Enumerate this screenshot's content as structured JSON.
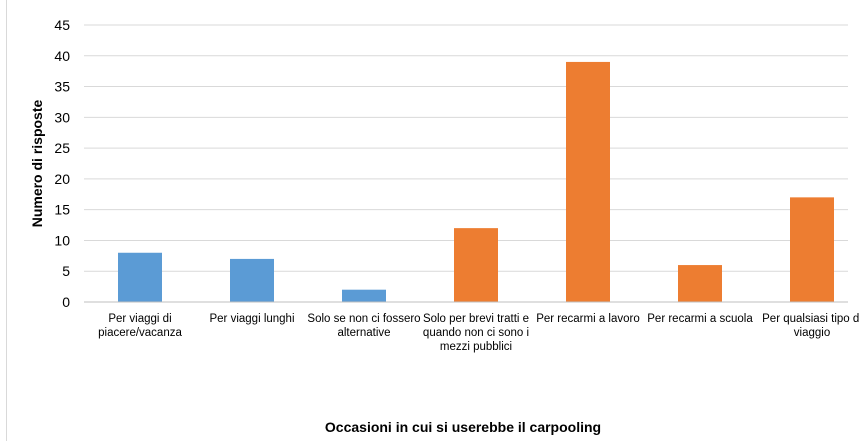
{
  "chart_data": {
    "type": "bar",
    "title": "",
    "xlabel": "Occasioni in cui si userebbe il carpooling",
    "ylabel": "Numero di risposte",
    "ylim": [
      0,
      45
    ],
    "yticks": [
      0,
      5,
      10,
      15,
      20,
      25,
      30,
      35,
      40,
      45
    ],
    "grid": true,
    "categories": [
      [
        "Per viaggi di",
        "piacere/vacanza"
      ],
      [
        "Per viaggi lunghi"
      ],
      [
        "Solo se non ci fossero",
        "alternative"
      ],
      [
        "Solo per brevi tratti e",
        "quando non ci sono i",
        "mezzi pubblici"
      ],
      [
        "Per recarmi a lavoro"
      ],
      [
        "Per recarmi a scuola"
      ],
      [
        "Per qualsiasi tipo di",
        "viaggio"
      ]
    ],
    "values": [
      8,
      7,
      2,
      12,
      39,
      6,
      17
    ],
    "colors": [
      "#5b9bd5",
      "#5b9bd5",
      "#5b9bd5",
      "#ed7d31",
      "#ed7d31",
      "#ed7d31",
      "#ed7d31"
    ]
  }
}
